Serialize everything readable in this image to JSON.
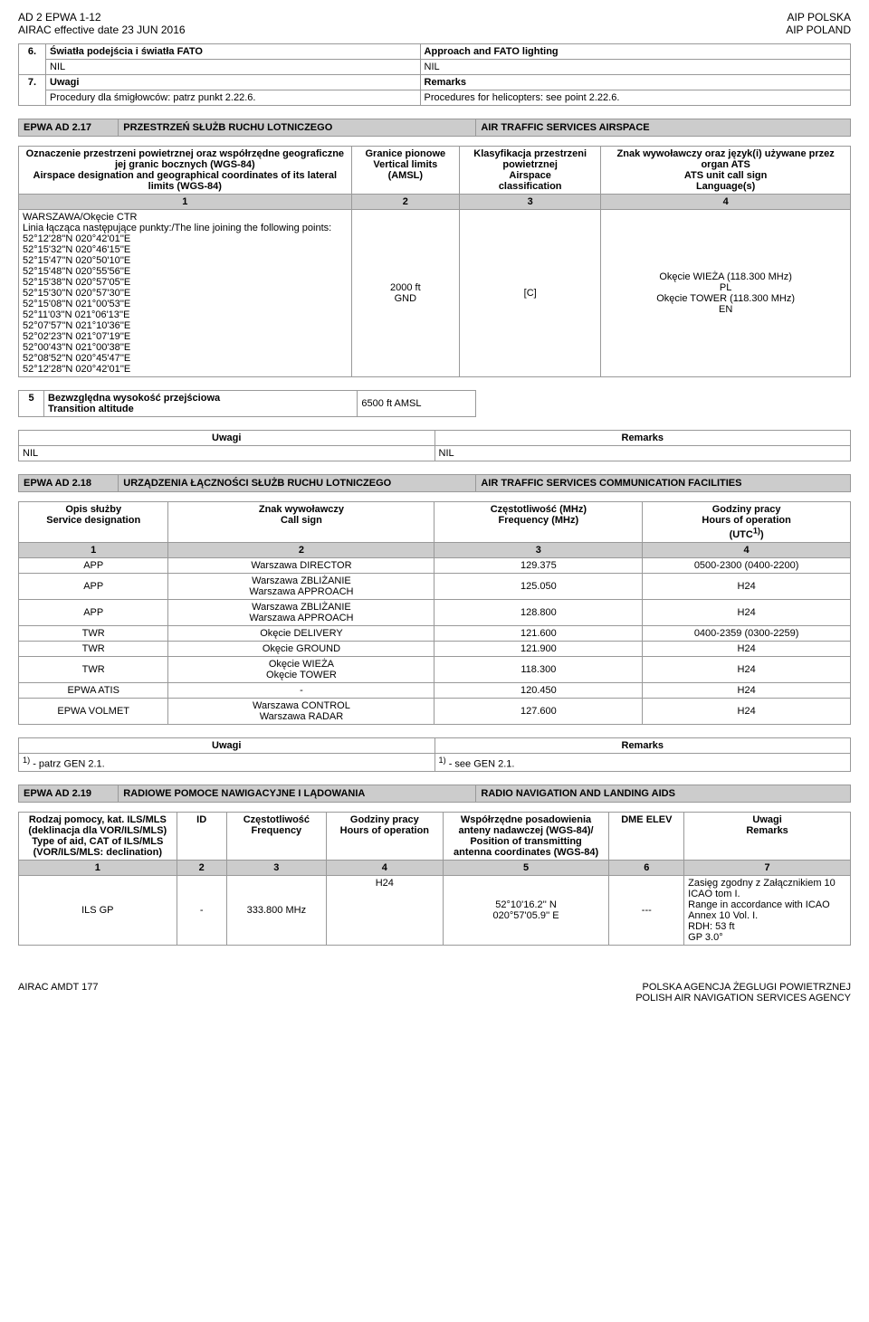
{
  "header": {
    "leftTop": "AD 2 EPWA 1-12",
    "leftBottom": "AIRAC effective date  23 JUN 2016",
    "rightTop": "AIP POLSKA",
    "rightBottom": "AIP POLAND"
  },
  "section6": {
    "num6": "6.",
    "leftTitle": "Światła podejścia i światła FATO",
    "leftNil": "NIL",
    "rightTitle": "Approach and FATO lighting",
    "rightNil": "NIL",
    "num7": "7.",
    "leftRemarks": "Uwagi",
    "leftRemText": "Procedury dla śmigłowców: patrz punkt 2.22.6.",
    "rightRemarks": "Remarks",
    "rightRemText": "Procedures for helicopters: see point 2.22.6."
  },
  "bar217": {
    "left": "EPWA  AD 2.17",
    "mid": "PRZESTRZEŃ SŁUŻB RUCHU LOTNICZEGO",
    "right": "AIR TRAFFIC SERVICES AIRSPACE"
  },
  "t217head": {
    "c1pl": "Oznaczenie przestrzeni powietrznej oraz współrzędne geograficzne jej granic bocznych (WGS-84)",
    "c1en": "Airspace designation and geographical coordinates of its lateral limits (WGS-84)",
    "c2pl": "Granice pionowe",
    "c2en1": "Vertical limits",
    "c2en2": "(AMSL)",
    "c3pl": "Klasyfikacja przestrzeni powietrznej",
    "c3en1": "Airspace",
    "c3en2": "classification",
    "c4pl": "Znak wywoławczy oraz język(i) używane przez organ  ATS",
    "c4en1": "ATS unit call sign",
    "c4en2": "Language(s)"
  },
  "t217nums": {
    "n1": "1",
    "n2": "2",
    "n3": "3",
    "n4": "4"
  },
  "t217body": {
    "ctr": "WARSZAWA/Okęcie  CTR",
    "linepl": "Linia łącząca następujące punkty:/The line joining the following points:",
    "p1": "52°12'28''N  020°42'01''E",
    "p2": "52°15'32''N  020°46'15''E",
    "p3": "52°15'47''N  020°50'10''E",
    "p4": "52°15'48''N  020°55'56''E",
    "p5": "52°15'38''N  020°57'05''E",
    "p6": "52°15'30''N  020°57'30''E",
    "p7": "52°15'08''N  021°00'53''E",
    "p8": "52°11'03''N  021°06'13''E",
    "p9": "52°07'57''N  021°10'36''E",
    "p10": "52°02'23''N  021°07'19''E",
    "p11": "52°00'43''N  021°00'38''E",
    "p12": "52°08'52''N  020°45'47''E",
    "p13": "52°12'28''N  020°42'01''E",
    "vert1": "2000 ft",
    "vert2": "GND",
    "class": "[C]",
    "call1": "Okęcie WIEŻA (118.300 MHz)",
    "call2": "PL",
    "call3": "Okęcie TOWER (118.300 MHz)",
    "call4": "EN"
  },
  "trans": {
    "num": "5",
    "pl": "Bezwzględna wysokość przejściowa",
    "en": "Transition altitude",
    "val": "6500 ft AMSL"
  },
  "remarksRow": {
    "pl": "Uwagi",
    "en": "Remarks",
    "nilL": "NIL",
    "nilR": "NIL"
  },
  "bar218": {
    "left": "EPWA  AD 2.18",
    "mid": "URZĄDZENIA ŁĄCZNOŚCI SŁUŻB RUCHU LOTNICZEGO",
    "right": "AIR TRAFFIC SERVICES COMMUNICATION FACILITIES"
  },
  "t218head": {
    "c1pl": "Opis służby",
    "c1en": "Service designation",
    "c2pl": "Znak wywoławczy",
    "c2en": "Call sign",
    "c3pl": "Częstotliwość (MHz)",
    "c3en": "Frequency (MHz)",
    "c4pl": "Godziny pracy",
    "c4en": "Hours of operation",
    "c4utc": "(UTC",
    "c4sup": "1)",
    "c4close": ")"
  },
  "t218nums": {
    "n1": "1",
    "n2": "2",
    "n3": "3",
    "n4": "4"
  },
  "t218rows": [
    {
      "s": "APP",
      "c": "Warszawa DIRECTOR",
      "f": "129.375",
      "h": "0500-2300 (0400-2200)"
    },
    {
      "s": "APP",
      "c": "Warszawa ZBLIŻANIE\nWarszawa APPROACH",
      "f": "125.050",
      "h": "H24"
    },
    {
      "s": "APP",
      "c": "Warszawa ZBLIŻANIE\nWarszawa APPROACH",
      "f": "128.800",
      "h": "H24"
    },
    {
      "s": "TWR",
      "c": "Okęcie DELIVERY",
      "f": "121.600",
      "h": "0400-2359 (0300-2259)"
    },
    {
      "s": "TWR",
      "c": "Okęcie GROUND",
      "f": "121.900",
      "h": "H24"
    },
    {
      "s": "TWR",
      "c": "Okęcie WIEŻA\nOkęcie TOWER",
      "f": "118.300",
      "h": "H24"
    },
    {
      "s": "EPWA ATIS",
      "c": "-",
      "f": "120.450",
      "h": "H24"
    },
    {
      "s": "EPWA VOLMET",
      "c": "Warszawa CONTROL\nWarszawa RADAR",
      "f": "127.600",
      "h": "H24"
    }
  ],
  "t218foot": {
    "pl": "Uwagi",
    "en": "Remarks",
    "lSup": "1)",
    "lText": " - patrz GEN 2.1.",
    "rSup": "1)",
    "rText": " - see GEN 2.1."
  },
  "bar219": {
    "left": "EPWA  AD 2.19",
    "mid": "RADIOWE POMOCE NAWIGACYJNE I LĄDOWANIA",
    "right": "RADIO NAVIGATION AND LANDING AIDS"
  },
  "t219head": {
    "c1a": "Rodzaj pomocy, kat. ILS/MLS",
    "c1b": "(deklinacja dla VOR/ILS/MLS)",
    "c1c": "Type of aid, CAT of ILS/MLS",
    "c1d": "(VOR/ILS/MLS: declination)",
    "c2": "ID",
    "c3pl": "Częstotliwość",
    "c3en": "Frequency",
    "c4pl": "Godziny pracy",
    "c4en": "Hours of operation",
    "c5pl": "Współrzędne posadowienia anteny nadawczej (WGS-84)/",
    "c5en1": "Position of transmitting",
    "c5en2": "antenna coordinates (WGS-84)",
    "c6": "DME ELEV",
    "c7pl": "Uwagi",
    "c7en": "Remarks"
  },
  "t219nums": {
    "n1": "1",
    "n2": "2",
    "n3": "3",
    "n4": "4",
    "n5": "5",
    "n6": "6",
    "n7": "7"
  },
  "t219row": {
    "aid": "ILS GP",
    "id": "-",
    "freq": "333.800 MHz",
    "hours": "H24",
    "pos1": "52°10'16.2'' N",
    "pos2": "020°57'05.9'' E",
    "dme": "---",
    "rem1": "Zasięg zgodny z Załącznikiem 10 ICAO tom I.",
    "rem2": "Range in accordance with ICAO Annex 10 Vol. I.",
    "rem3": "RDH: 53 ft",
    "rem4": "GP 3.0°"
  },
  "footer": {
    "left": "AIRAC AMDT  177",
    "right1": "POLSKA AGENCJA ŻEGLUGI POWIETRZNEJ",
    "right2": "POLISH AIR NAVIGATION SERVICES AGENCY"
  }
}
